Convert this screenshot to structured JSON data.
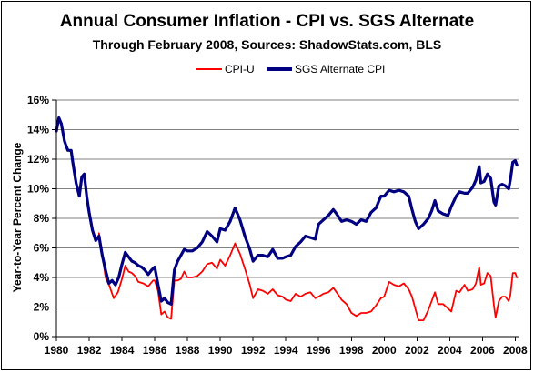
{
  "chart_data": {
    "type": "line",
    "title": "Annual Consumer Inflation - CPI vs. SGS Alternate",
    "subtitle": "Through February 2008, Sources: ShadowStats.com, BLS",
    "xlabel": "",
    "ylabel": "Year-to-Year Percent Change",
    "xlim": [
      1980,
      2008.2
    ],
    "ylim": [
      0,
      16
    ],
    "x_ticks": [
      1980,
      1982,
      1984,
      1986,
      1988,
      1990,
      1992,
      1994,
      1996,
      1998,
      2000,
      2002,
      2004,
      2006,
      2008
    ],
    "x_tick_labels": [
      "1980",
      "1982",
      "1984",
      "1986",
      "1988",
      "1990",
      "1992",
      "1994",
      "1996",
      "1998",
      "2000",
      "2002",
      "2004",
      "2006",
      "2008"
    ],
    "y_ticks": [
      0,
      2,
      4,
      6,
      8,
      10,
      12,
      14,
      16
    ],
    "y_tick_labels": [
      "0%",
      "2%",
      "4%",
      "6%",
      "8%",
      "10%",
      "12%",
      "14%",
      "16%"
    ],
    "grid": "horizontal",
    "legend_position": "top",
    "series": [
      {
        "name": "CPI-U",
        "color": "#ff0000",
        "points": [
          [
            1982.6,
            7.0
          ],
          [
            1982.75,
            6.0
          ],
          [
            1983.0,
            4.0
          ],
          [
            1983.25,
            3.4
          ],
          [
            1983.5,
            2.6
          ],
          [
            1983.75,
            3.0
          ],
          [
            1984.0,
            3.9
          ],
          [
            1984.2,
            4.8
          ],
          [
            1984.4,
            4.4
          ],
          [
            1984.6,
            4.3
          ],
          [
            1984.8,
            4.1
          ],
          [
            1985.0,
            3.7
          ],
          [
            1985.3,
            3.6
          ],
          [
            1985.6,
            3.4
          ],
          [
            1985.9,
            3.8
          ],
          [
            1986.0,
            3.8
          ],
          [
            1986.2,
            3.1
          ],
          [
            1986.4,
            1.5
          ],
          [
            1986.6,
            1.7
          ],
          [
            1986.8,
            1.3
          ],
          [
            1987.0,
            1.2
          ],
          [
            1987.2,
            3.8
          ],
          [
            1987.4,
            3.8
          ],
          [
            1987.6,
            3.9
          ],
          [
            1987.8,
            4.4
          ],
          [
            1988.0,
            4.0
          ],
          [
            1988.3,
            4.0
          ],
          [
            1988.6,
            4.1
          ],
          [
            1988.9,
            4.4
          ],
          [
            1989.2,
            4.9
          ],
          [
            1989.5,
            5.0
          ],
          [
            1989.8,
            4.6
          ],
          [
            1990.0,
            5.2
          ],
          [
            1990.3,
            4.8
          ],
          [
            1990.6,
            5.5
          ],
          [
            1990.9,
            6.3
          ],
          [
            1991.2,
            5.6
          ],
          [
            1991.5,
            4.6
          ],
          [
            1991.8,
            3.5
          ],
          [
            1992.0,
            2.6
          ],
          [
            1992.3,
            3.2
          ],
          [
            1992.6,
            3.1
          ],
          [
            1992.9,
            2.9
          ],
          [
            1993.2,
            3.2
          ],
          [
            1993.5,
            2.8
          ],
          [
            1993.8,
            2.7
          ],
          [
            1994.0,
            2.5
          ],
          [
            1994.3,
            2.4
          ],
          [
            1994.6,
            2.9
          ],
          [
            1994.9,
            2.7
          ],
          [
            1995.2,
            2.9
          ],
          [
            1995.5,
            3.0
          ],
          [
            1995.8,
            2.6
          ],
          [
            1996.0,
            2.7
          ],
          [
            1996.3,
            2.9
          ],
          [
            1996.6,
            3.0
          ],
          [
            1996.9,
            3.3
          ],
          [
            1997.1,
            3.0
          ],
          [
            1997.4,
            2.5
          ],
          [
            1997.7,
            2.2
          ],
          [
            1998.0,
            1.6
          ],
          [
            1998.3,
            1.4
          ],
          [
            1998.6,
            1.6
          ],
          [
            1998.9,
            1.6
          ],
          [
            1999.2,
            1.7
          ],
          [
            1999.5,
            2.1
          ],
          [
            1999.8,
            2.6
          ],
          [
            2000.0,
            2.7
          ],
          [
            2000.3,
            3.7
          ],
          [
            2000.6,
            3.5
          ],
          [
            2000.9,
            3.4
          ],
          [
            2001.2,
            3.6
          ],
          [
            2001.5,
            3.2
          ],
          [
            2001.7,
            2.7
          ],
          [
            2001.9,
            1.9
          ],
          [
            2002.1,
            1.1
          ],
          [
            2002.4,
            1.1
          ],
          [
            2002.7,
            1.8
          ],
          [
            2002.9,
            2.4
          ],
          [
            2003.1,
            3.0
          ],
          [
            2003.3,
            2.2
          ],
          [
            2003.6,
            2.2
          ],
          [
            2003.9,
            1.9
          ],
          [
            2004.1,
            1.7
          ],
          [
            2004.4,
            3.1
          ],
          [
            2004.6,
            3.0
          ],
          [
            2004.9,
            3.5
          ],
          [
            2005.1,
            3.1
          ],
          [
            2005.4,
            3.2
          ],
          [
            2005.6,
            3.6
          ],
          [
            2005.8,
            4.7
          ],
          [
            2005.9,
            3.5
          ],
          [
            2006.1,
            3.6
          ],
          [
            2006.3,
            4.3
          ],
          [
            2006.5,
            4.1
          ],
          [
            2006.7,
            2.1
          ],
          [
            2006.8,
            1.3
          ],
          [
            2007.0,
            2.4
          ],
          [
            2007.2,
            2.7
          ],
          [
            2007.4,
            2.7
          ],
          [
            2007.6,
            2.4
          ],
          [
            2007.7,
            2.8
          ],
          [
            2007.85,
            4.3
          ],
          [
            2008.0,
            4.3
          ],
          [
            2008.1,
            4.0
          ]
        ]
      },
      {
        "name": "SGS Alternate CPI",
        "color": "#000080",
        "points": [
          [
            1980.0,
            13.9
          ],
          [
            1980.15,
            14.8
          ],
          [
            1980.3,
            14.4
          ],
          [
            1980.5,
            13.2
          ],
          [
            1980.7,
            12.6
          ],
          [
            1980.9,
            12.6
          ],
          [
            1981.0,
            11.8
          ],
          [
            1981.2,
            10.4
          ],
          [
            1981.4,
            9.5
          ],
          [
            1981.55,
            10.8
          ],
          [
            1981.7,
            11.0
          ],
          [
            1981.85,
            9.5
          ],
          [
            1982.0,
            8.4
          ],
          [
            1982.2,
            7.2
          ],
          [
            1982.4,
            6.5
          ],
          [
            1982.6,
            6.8
          ],
          [
            1982.8,
            5.5
          ],
          [
            1983.0,
            4.5
          ],
          [
            1983.2,
            3.6
          ],
          [
            1983.4,
            3.8
          ],
          [
            1983.6,
            3.5
          ],
          [
            1983.8,
            4.0
          ],
          [
            1984.0,
            4.9
          ],
          [
            1984.2,
            5.7
          ],
          [
            1984.4,
            5.4
          ],
          [
            1984.6,
            5.1
          ],
          [
            1984.8,
            5.0
          ],
          [
            1985.0,
            4.8
          ],
          [
            1985.2,
            4.7
          ],
          [
            1985.4,
            4.5
          ],
          [
            1985.6,
            4.2
          ],
          [
            1985.8,
            4.5
          ],
          [
            1986.0,
            4.7
          ],
          [
            1986.2,
            3.5
          ],
          [
            1986.4,
            2.4
          ],
          [
            1986.6,
            2.6
          ],
          [
            1986.8,
            2.3
          ],
          [
            1987.0,
            2.2
          ],
          [
            1987.2,
            4.5
          ],
          [
            1987.4,
            5.1
          ],
          [
            1987.6,
            5.5
          ],
          [
            1987.8,
            5.9
          ],
          [
            1988.0,
            5.8
          ],
          [
            1988.3,
            5.8
          ],
          [
            1988.6,
            6.0
          ],
          [
            1988.9,
            6.4
          ],
          [
            1989.2,
            7.1
          ],
          [
            1989.5,
            6.8
          ],
          [
            1989.8,
            6.4
          ],
          [
            1990.0,
            7.3
          ],
          [
            1990.3,
            7.2
          ],
          [
            1990.6,
            7.8
          ],
          [
            1990.9,
            8.7
          ],
          [
            1991.2,
            7.9
          ],
          [
            1991.5,
            6.8
          ],
          [
            1991.8,
            5.9
          ],
          [
            1992.0,
            5.1
          ],
          [
            1992.3,
            5.5
          ],
          [
            1992.6,
            5.5
          ],
          [
            1992.9,
            5.4
          ],
          [
            1993.2,
            5.9
          ],
          [
            1993.5,
            5.3
          ],
          [
            1993.8,
            5.3
          ],
          [
            1994.0,
            5.4
          ],
          [
            1994.3,
            5.5
          ],
          [
            1994.6,
            6.1
          ],
          [
            1994.9,
            6.4
          ],
          [
            1995.2,
            6.8
          ],
          [
            1995.5,
            6.7
          ],
          [
            1995.8,
            6.6
          ],
          [
            1996.0,
            7.6
          ],
          [
            1996.3,
            7.9
          ],
          [
            1996.6,
            8.2
          ],
          [
            1996.9,
            8.6
          ],
          [
            1997.1,
            8.3
          ],
          [
            1997.4,
            7.8
          ],
          [
            1997.7,
            7.9
          ],
          [
            1998.0,
            7.8
          ],
          [
            1998.3,
            7.6
          ],
          [
            1998.6,
            7.9
          ],
          [
            1998.9,
            7.8
          ],
          [
            1999.2,
            8.4
          ],
          [
            1999.5,
            8.7
          ],
          [
            1999.8,
            9.5
          ],
          [
            2000.0,
            9.5
          ],
          [
            2000.3,
            9.9
          ],
          [
            2000.6,
            9.8
          ],
          [
            2000.9,
            9.9
          ],
          [
            2001.2,
            9.8
          ],
          [
            2001.5,
            9.5
          ],
          [
            2001.7,
            8.6
          ],
          [
            2001.9,
            7.8
          ],
          [
            2002.1,
            7.3
          ],
          [
            2002.4,
            7.6
          ],
          [
            2002.7,
            8.0
          ],
          [
            2002.9,
            8.5
          ],
          [
            2003.1,
            9.2
          ],
          [
            2003.3,
            8.5
          ],
          [
            2003.6,
            8.3
          ],
          [
            2003.9,
            8.2
          ],
          [
            2004.1,
            8.8
          ],
          [
            2004.4,
            9.5
          ],
          [
            2004.6,
            9.8
          ],
          [
            2004.9,
            9.7
          ],
          [
            2005.1,
            9.7
          ],
          [
            2005.4,
            10.1
          ],
          [
            2005.6,
            10.6
          ],
          [
            2005.8,
            11.5
          ],
          [
            2005.9,
            10.4
          ],
          [
            2006.1,
            10.5
          ],
          [
            2006.3,
            11.0
          ],
          [
            2006.5,
            10.7
          ],
          [
            2006.7,
            9.1
          ],
          [
            2006.8,
            8.9
          ],
          [
            2007.0,
            10.2
          ],
          [
            2007.2,
            10.3
          ],
          [
            2007.4,
            10.2
          ],
          [
            2007.6,
            10.0
          ],
          [
            2007.7,
            10.6
          ],
          [
            2007.85,
            11.8
          ],
          [
            2008.0,
            11.9
          ],
          [
            2008.1,
            11.6
          ]
        ]
      }
    ]
  }
}
